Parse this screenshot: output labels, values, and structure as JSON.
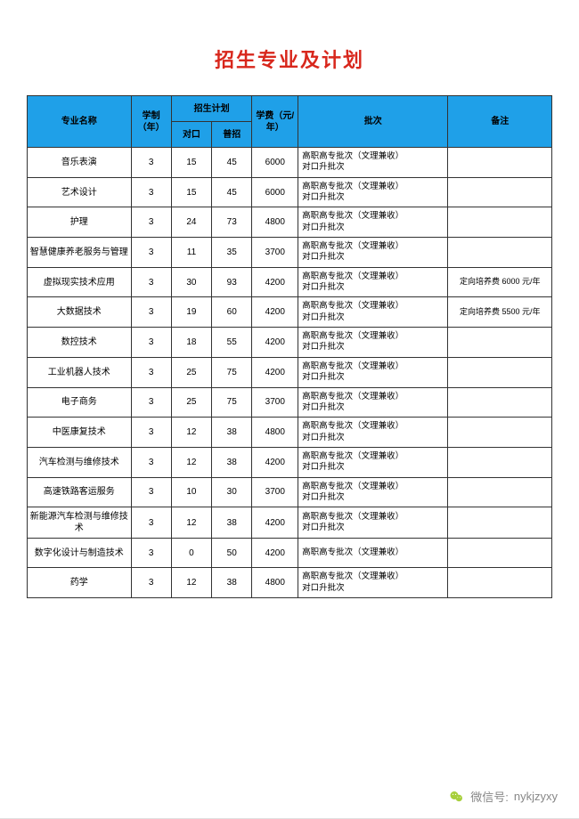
{
  "title": {
    "text": "招生专业及计划",
    "color": "#d8271c"
  },
  "header_bg": "#1fa0e8",
  "columns": {
    "name": "专业名称",
    "years": "学制（年）",
    "plan": "招生计划",
    "dk": "对口",
    "pz": "普招",
    "fee": "学费（元/年）",
    "batch": "批次",
    "note": "备注"
  },
  "batch_two": "高职高专批次（文理兼收）对口升批次",
  "batch_one": "高职高专批次（文理兼收）",
  "rows": [
    {
      "name": "音乐表演",
      "years": 3,
      "dk": 15,
      "pz": 45,
      "fee": 6000,
      "batch": "two",
      "note": ""
    },
    {
      "name": "艺术设计",
      "years": 3,
      "dk": 15,
      "pz": 45,
      "fee": 6000,
      "batch": "two",
      "note": ""
    },
    {
      "name": "护理",
      "years": 3,
      "dk": 24,
      "pz": 73,
      "fee": 4800,
      "batch": "two",
      "note": ""
    },
    {
      "name": "智慧健康养老服务与管理",
      "years": 3,
      "dk": 11,
      "pz": 35,
      "fee": 3700,
      "batch": "two",
      "note": ""
    },
    {
      "name": "虚拟现实技术应用",
      "years": 3,
      "dk": 30,
      "pz": 93,
      "fee": 4200,
      "batch": "two",
      "note": "定向培养费 6000 元/年"
    },
    {
      "name": "大数据技术",
      "years": 3,
      "dk": 19,
      "pz": 60,
      "fee": 4200,
      "batch": "two",
      "note": "定向培养费 5500 元/年"
    },
    {
      "name": "数控技术",
      "years": 3,
      "dk": 18,
      "pz": 55,
      "fee": 4200,
      "batch": "two",
      "note": ""
    },
    {
      "name": "工业机器人技术",
      "years": 3,
      "dk": 25,
      "pz": 75,
      "fee": 4200,
      "batch": "two",
      "note": ""
    },
    {
      "name": "电子商务",
      "years": 3,
      "dk": 25,
      "pz": 75,
      "fee": 3700,
      "batch": "two",
      "note": ""
    },
    {
      "name": "中医康复技术",
      "years": 3,
      "dk": 12,
      "pz": 38,
      "fee": 4800,
      "batch": "two",
      "note": ""
    },
    {
      "name": "汽车检测与维修技术",
      "years": 3,
      "dk": 12,
      "pz": 38,
      "fee": 4200,
      "batch": "two",
      "note": ""
    },
    {
      "name": "高速铁路客运服务",
      "years": 3,
      "dk": 10,
      "pz": 30,
      "fee": 3700,
      "batch": "two",
      "note": ""
    },
    {
      "name": "新能源汽车检测与维修技术",
      "years": 3,
      "dk": 12,
      "pz": 38,
      "fee": 4200,
      "batch": "two",
      "note": ""
    },
    {
      "name": "数字化设计与制造技术",
      "years": 3,
      "dk": 0,
      "pz": 50,
      "fee": 4200,
      "batch": "one",
      "note": ""
    },
    {
      "name": "药学",
      "years": 3,
      "dk": 12,
      "pz": 38,
      "fee": 4800,
      "batch": "two",
      "note": ""
    }
  ],
  "footer": {
    "label": "微信号:",
    "id": "nykjzyxy",
    "icon_color": "#a7cf3c"
  }
}
